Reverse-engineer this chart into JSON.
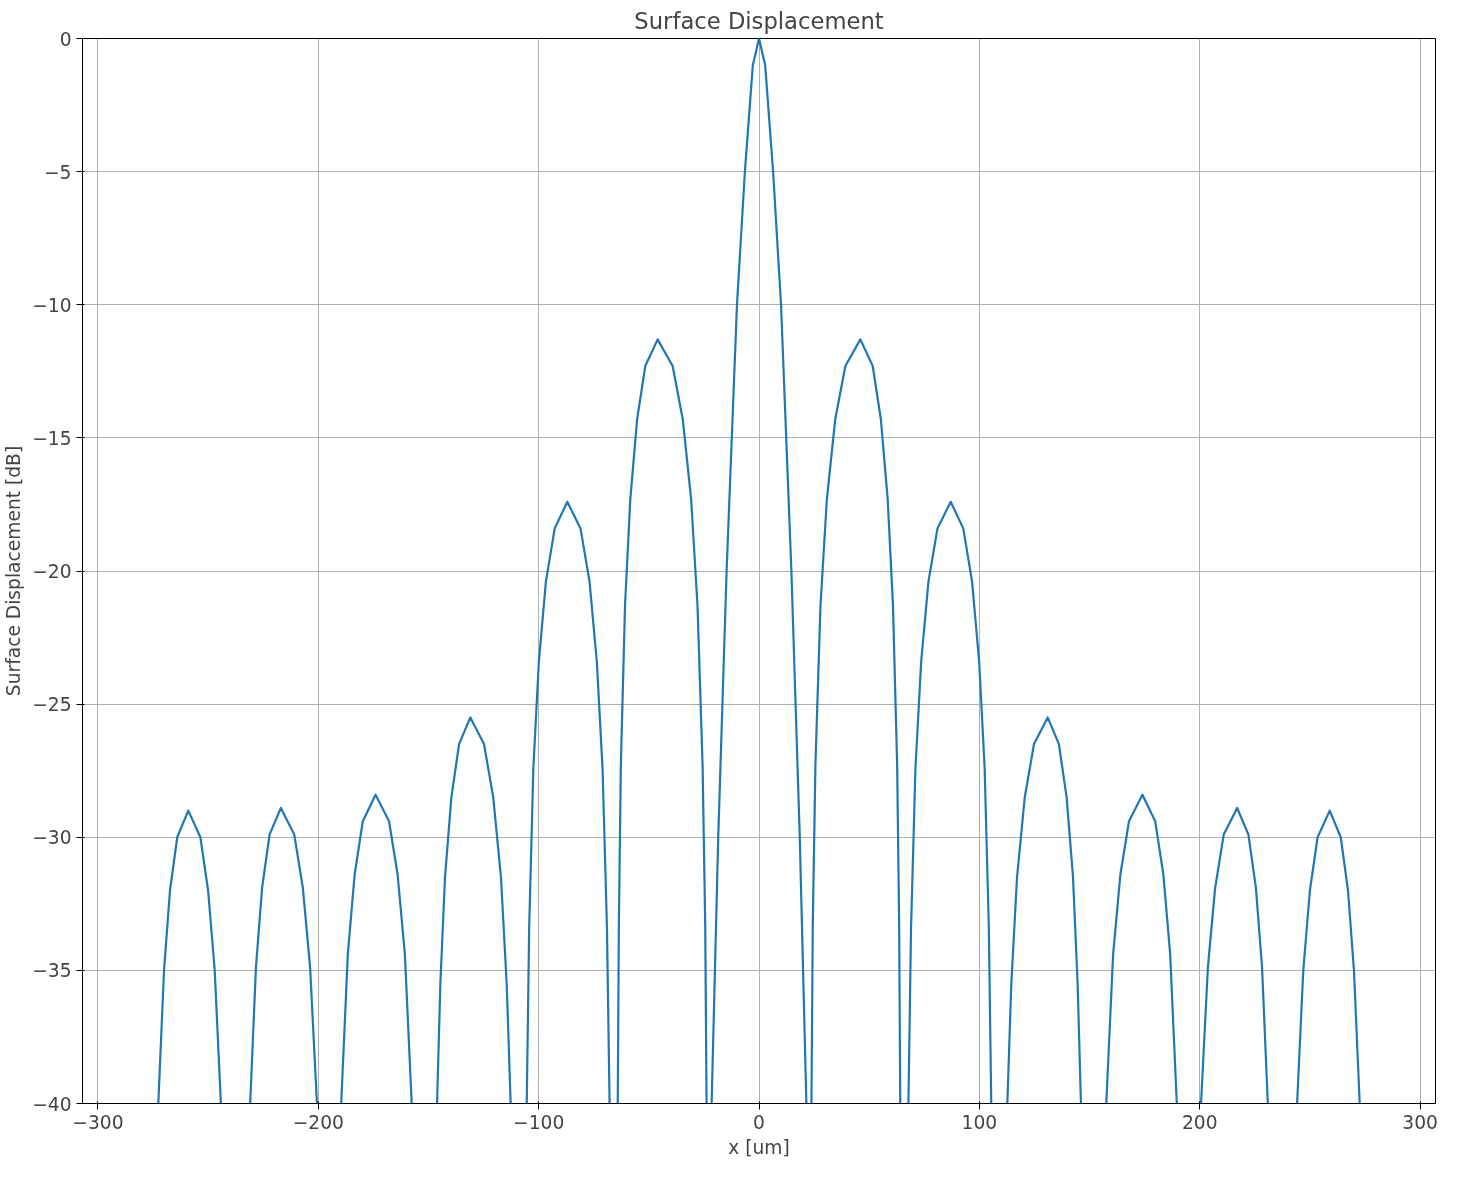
{
  "chart_data": {
    "type": "line",
    "title": "Surface Displacement",
    "xlabel": "x [um]",
    "ylabel": "Surface Displacement [dB]",
    "xlim": [
      -307,
      307
    ],
    "ylim": [
      -40,
      0
    ],
    "xticks": [
      {
        "value": -300,
        "label": "−300"
      },
      {
        "value": -200,
        "label": "−200"
      },
      {
        "value": -100,
        "label": "−100"
      },
      0,
      100,
      200,
      300
    ],
    "yticks": [
      {
        "value": -40,
        "label": "−40"
      },
      {
        "value": -35,
        "label": "−35"
      },
      {
        "value": -30,
        "label": "−30"
      },
      {
        "value": -25,
        "label": "−25"
      },
      {
        "value": -20,
        "label": "−20"
      },
      {
        "value": -15,
        "label": "−15"
      },
      {
        "value": -10,
        "label": "−10"
      },
      {
        "value": -5,
        "label": "−5"
      },
      0
    ],
    "grid": true,
    "series": [
      {
        "color": "#1f77b4",
        "x": [
          -272.6,
          -270.0,
          -267.3,
          -264.0,
          -259,
          -253.5,
          -250.0,
          -247.0,
          -244.2,
          -237,
          -230.9,
          -228.3,
          -225.5,
          -222.1,
          -217,
          -210.9,
          -207.0,
          -203.7,
          -200.6,
          -195,
          -189.6,
          -186.6,
          -183.5,
          -179.8,
          -174,
          -167.9,
          -164.0,
          -160.7,
          -157.6,
          -152,
          -146.1,
          -144.6,
          -142.5,
          -139.6,
          -136.1,
          -131,
          -124.8,
          -120.6,
          -117.1,
          -114.5,
          -112.7,
          -109,
          -105.4,
          -104.3,
          -102.4,
          -99.9,
          -96.7,
          -92.7,
          -87,
          -81.0,
          -76.9,
          -73.6,
          -71.0,
          -69.0,
          -67.8,
          -66,
          -64.1,
          -63.6,
          -62.7,
          -60.8,
          -58.4,
          -55.3,
          -51.6,
          -46,
          -39.2,
          -34.6,
          -30.8,
          -27.9,
          -25.6,
          -24.4,
          -23.8,
          -22.6,
          -21.5,
          -20,
          -18.5,
          -14.7,
          -10,
          -6.4,
          -2.8,
          0,
          2.8,
          6.4,
          10,
          14.7,
          18.5,
          20,
          21.5,
          22.6,
          23.8,
          24.4,
          25.6,
          27.9,
          30.8,
          34.6,
          39.2,
          46,
          51.6,
          55.3,
          58.4,
          60.8,
          62.7,
          63.6,
          64.1,
          66,
          67.8,
          69.0,
          71.0,
          73.6,
          76.9,
          81.0,
          87,
          92.7,
          96.7,
          99.9,
          102.4,
          104.3,
          105.4,
          109,
          112.7,
          114.5,
          117.1,
          120.6,
          124.8,
          131,
          136.1,
          139.6,
          142.5,
          144.6,
          146.1,
          152,
          157.6,
          160.7,
          164.0,
          167.9,
          174,
          179.8,
          183.5,
          186.6,
          189.6,
          195,
          200.6,
          203.7,
          207.0,
          210.9,
          217,
          222.1,
          225.5,
          228.3,
          230.9,
          237,
          244.2,
          247.0,
          250.0,
          253.5,
          259,
          264.0,
          267.3,
          270.0,
          272.6
        ],
        "values": [
          -40,
          -35,
          -32,
          -30,
          -29,
          -30,
          -32,
          -35,
          -40,
          null,
          -40,
          -34.9,
          -31.9,
          -29.9,
          -28.9,
          -29.9,
          -31.9,
          -34.9,
          -40,
          null,
          -40,
          -34.4,
          -31.4,
          -29.4,
          -28.4,
          -29.4,
          -31.4,
          -34.4,
          -40,
          null,
          -40,
          -35.5,
          -31.5,
          -28.5,
          -26.5,
          -25.5,
          -26.5,
          -28.5,
          -31.5,
          -35.5,
          -40,
          null,
          -40,
          -33.4,
          -27.4,
          -23.4,
          -20.4,
          -18.4,
          -17.4,
          -18.4,
          -20.4,
          -23.4,
          -27.4,
          -33.4,
          -40,
          null,
          -40,
          -33.3,
          -27.3,
          -21.3,
          -17.3,
          -14.3,
          -12.3,
          -11.3,
          -12.3,
          -14.3,
          -17.3,
          -21.3,
          -27.3,
          -33.3,
          -40,
          null,
          -40,
          -35,
          -30,
          -20,
          -10,
          -5,
          -1,
          0,
          -1,
          -5,
          -10,
          -20,
          -30,
          -35,
          -40,
          null,
          -40,
          -33.3,
          -27.3,
          -21.3,
          -17.3,
          -14.3,
          -12.3,
          -11.3,
          -12.3,
          -14.3,
          -17.3,
          -21.3,
          -27.3,
          -33.3,
          -40,
          null,
          -40,
          -33.4,
          -27.4,
          -23.4,
          -20.4,
          -18.4,
          -17.4,
          -18.4,
          -20.4,
          -23.4,
          -27.4,
          -33.4,
          -40,
          null,
          -40,
          -35.5,
          -31.5,
          -28.5,
          -26.5,
          -25.5,
          -26.5,
          -28.5,
          -31.5,
          -35.5,
          -40,
          null,
          -40,
          -34.4,
          -31.4,
          -29.4,
          -28.4,
          -29.4,
          -31.4,
          -34.4,
          -40,
          null,
          -40,
          -34.9,
          -31.9,
          -29.9,
          -28.9,
          -29.9,
          -31.9,
          -34.9,
          -40,
          null,
          -40,
          -35,
          -32,
          -30,
          -29,
          -30,
          -32,
          -35,
          -40
        ]
      }
    ]
  }
}
